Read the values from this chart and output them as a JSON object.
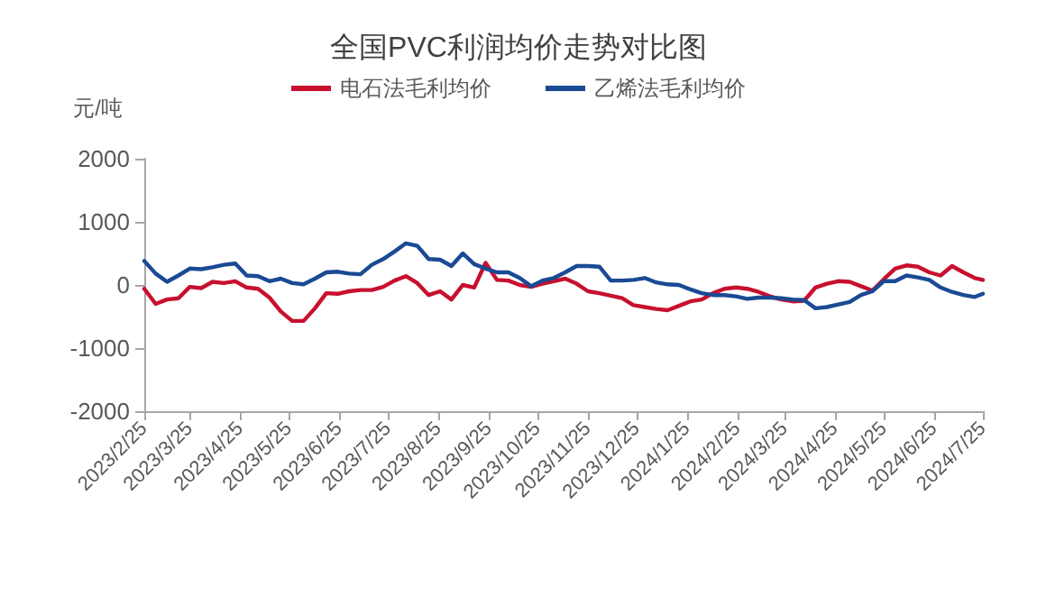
{
  "chart_data": {
    "type": "line",
    "title": "全国PVC利润均价走势对比图",
    "ylabel": "元/吨",
    "x": [
      "2023-02-25",
      "2023-03-04",
      "2023-03-11",
      "2023-03-18",
      "2023-03-25",
      "2023-04-01",
      "2023-04-08",
      "2023-04-15",
      "2023-04-22",
      "2023-04-29",
      "2023-05-06",
      "2023-05-13",
      "2023-05-20",
      "2023-05-27",
      "2023-06-03",
      "2023-06-10",
      "2023-06-17",
      "2023-06-24",
      "2023-07-01",
      "2023-07-08",
      "2023-07-15",
      "2023-07-22",
      "2023-07-29",
      "2023-08-05",
      "2023-08-12",
      "2023-08-19",
      "2023-08-26",
      "2023-09-02",
      "2023-09-09",
      "2023-09-16",
      "2023-09-23",
      "2023-09-30",
      "2023-10-07",
      "2023-10-14",
      "2023-10-21",
      "2023-10-28",
      "2023-11-04",
      "2023-11-11",
      "2023-11-18",
      "2023-11-25",
      "2023-12-02",
      "2023-12-09",
      "2023-12-16",
      "2023-12-23",
      "2023-12-30",
      "2024-01-06",
      "2024-01-13",
      "2024-01-20",
      "2024-01-27",
      "2024-02-03",
      "2024-02-10",
      "2024-02-17",
      "2024-02-24",
      "2024-03-02",
      "2024-03-09",
      "2024-03-16",
      "2024-03-23",
      "2024-03-30",
      "2024-04-06",
      "2024-04-13",
      "2024-04-20",
      "2024-04-27",
      "2024-05-04",
      "2024-05-11",
      "2024-05-18",
      "2024-05-25",
      "2024-06-01",
      "2024-06-08",
      "2024-06-15",
      "2024-06-22",
      "2024-06-29",
      "2024-07-06",
      "2024-07-13",
      "2024-07-20",
      "2024-07-25"
    ],
    "series": [
      {
        "name": "电石法毛利均价",
        "color": "#c8102e",
        "values": [
          -60,
          -300,
          -230,
          -210,
          -30,
          -50,
          50,
          30,
          60,
          -40,
          -60,
          -200,
          -420,
          -570,
          -570,
          -370,
          -130,
          -140,
          -100,
          -80,
          -80,
          -30,
          70,
          140,
          30,
          -160,
          -100,
          -230,
          0,
          -40,
          350,
          80,
          70,
          0,
          -30,
          20,
          60,
          100,
          20,
          -100,
          -130,
          -170,
          -210,
          -320,
          -350,
          -380,
          -400,
          -330,
          -260,
          -230,
          -130,
          -60,
          -40,
          -60,
          -110,
          -180,
          -230,
          -260,
          -250,
          -40,
          20,
          60,
          50,
          -20,
          -90,
          90,
          260,
          310,
          290,
          200,
          150,
          300,
          200,
          110,
          80
        ]
      },
      {
        "name": "乙烯法毛利均价",
        "color": "#1a4a94",
        "values": [
          380,
          180,
          50,
          150,
          260,
          250,
          280,
          320,
          340,
          150,
          140,
          60,
          100,
          30,
          10,
          100,
          200,
          210,
          180,
          170,
          320,
          410,
          530,
          660,
          620,
          410,
          400,
          300,
          500,
          330,
          260,
          200,
          200,
          110,
          -20,
          70,
          110,
          200,
          300,
          300,
          290,
          70,
          70,
          80,
          110,
          40,
          10,
          0,
          -70,
          -130,
          -160,
          -160,
          -180,
          -220,
          -200,
          -200,
          -210,
          -230,
          -240,
          -370,
          -350,
          -310,
          -270,
          -160,
          -100,
          60,
          60,
          150,
          120,
          80,
          -40,
          -110,
          -160,
          -190,
          -140
        ]
      }
    ],
    "xlim": [
      "2023-02-25",
      "2024-07-25"
    ],
    "xticks": [
      {
        "value": "2023-02-25",
        "label": "2023/2/25"
      },
      {
        "value": "2023-03-25",
        "label": "2023/3/25"
      },
      {
        "value": "2023-04-25",
        "label": "2023/4/25"
      },
      {
        "value": "2023-05-25",
        "label": "2023/5/25"
      },
      {
        "value": "2023-06-25",
        "label": "2023/6/25"
      },
      {
        "value": "2023-07-25",
        "label": "2023/7/25"
      },
      {
        "value": "2023-08-25",
        "label": "2023/8/25"
      },
      {
        "value": "2023-09-25",
        "label": "2023/9/25"
      },
      {
        "value": "2023-10-25",
        "label": "2023/10/25"
      },
      {
        "value": "2023-11-25",
        "label": "2023/11/25"
      },
      {
        "value": "2023-12-25",
        "label": "2023/12/25"
      },
      {
        "value": "2024-01-25",
        "label": "2024/1/25"
      },
      {
        "value": "2024-02-25",
        "label": "2024/2/25"
      },
      {
        "value": "2024-03-25",
        "label": "2024/3/25"
      },
      {
        "value": "2024-04-25",
        "label": "2024/4/25"
      },
      {
        "value": "2024-05-25",
        "label": "2024/5/25"
      },
      {
        "value": "2024-06-25",
        "label": "2024/6/25"
      },
      {
        "value": "2024-07-25",
        "label": "2024/7/25"
      }
    ],
    "ylim": [
      -2000,
      2000
    ],
    "yticks": [
      -2000,
      -1000,
      0,
      1000,
      2000
    ],
    "grid": false,
    "legend": "top",
    "marker": "none",
    "line_style": "solid"
  }
}
